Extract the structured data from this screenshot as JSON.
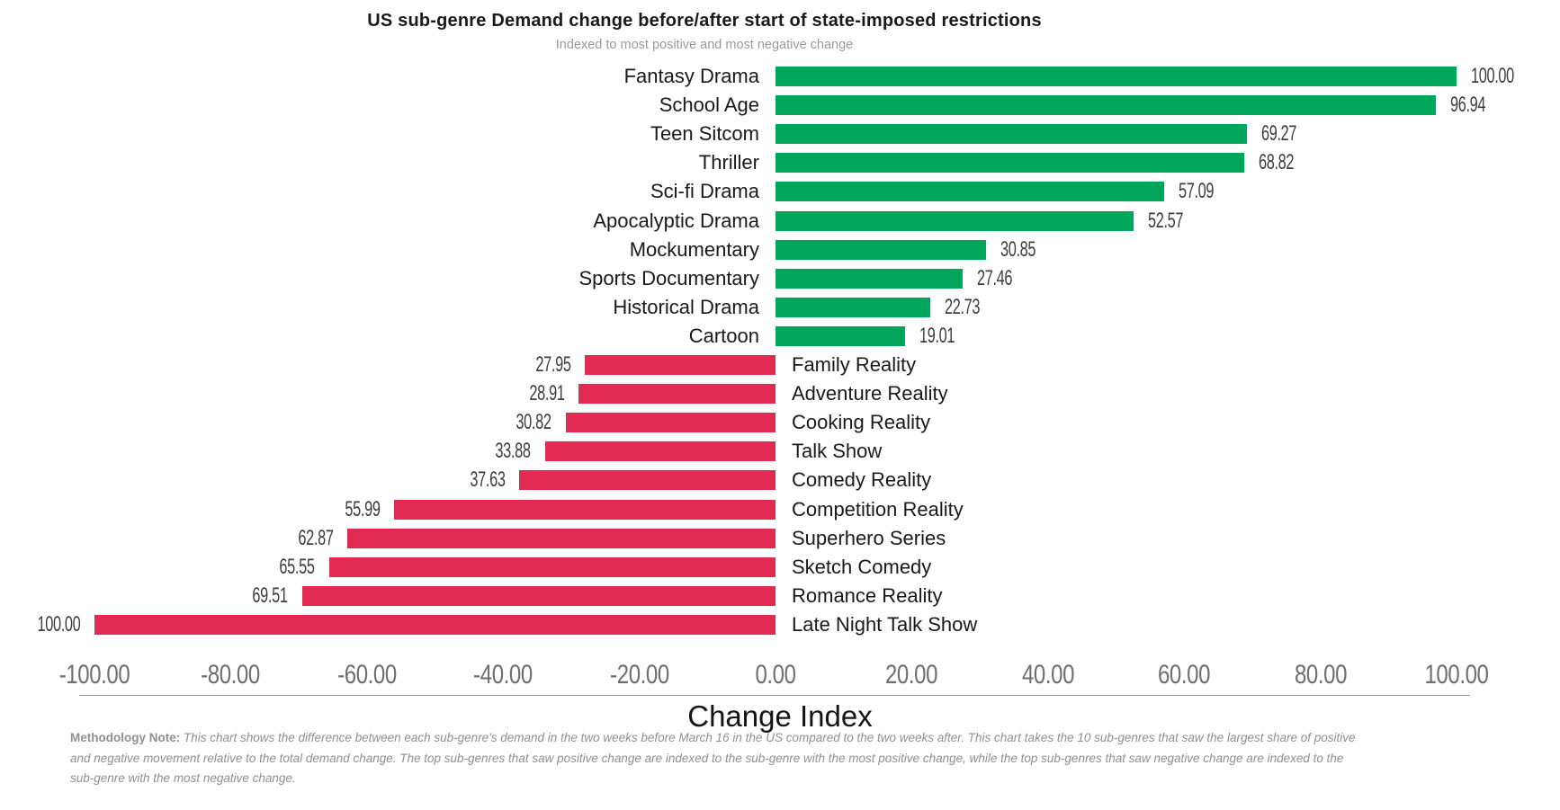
{
  "chart_data": {
    "type": "bar",
    "orientation": "horizontal",
    "title": "US sub-genre Demand change before/after start of state-imposed restrictions",
    "subtitle": "Indexed to most positive and most negative change",
    "xlabel": "Change Index",
    "xlim": [
      -100,
      100
    ],
    "grid": false,
    "legend": false,
    "xtick_values": [
      -100,
      -80,
      -60,
      -40,
      -20,
      0,
      20,
      40,
      60,
      80,
      100
    ],
    "xtick_labels": [
      "-100.00",
      "-80.00",
      "-60.00",
      "-40.00",
      "-20.00",
      "0.00",
      "20.00",
      "40.00",
      "60.00",
      "80.00",
      "100.00"
    ],
    "positive_color": "#00a75a",
    "negative_color": "#e32a52",
    "items": [
      {
        "label": "Fantasy Drama",
        "value": 100.0,
        "display": "100.00"
      },
      {
        "label": "School Age",
        "value": 96.94,
        "display": "96.94"
      },
      {
        "label": "Teen Sitcom",
        "value": 69.27,
        "display": "69.27"
      },
      {
        "label": "Thriller",
        "value": 68.82,
        "display": "68.82"
      },
      {
        "label": "Sci-fi Drama",
        "value": 57.09,
        "display": "57.09"
      },
      {
        "label": "Apocalyptic Drama",
        "value": 52.57,
        "display": "52.57"
      },
      {
        "label": "Mockumentary",
        "value": 30.85,
        "display": "30.85"
      },
      {
        "label": "Sports Documentary",
        "value": 27.46,
        "display": "27.46"
      },
      {
        "label": "Historical Drama",
        "value": 22.73,
        "display": "22.73"
      },
      {
        "label": "Cartoon",
        "value": 19.01,
        "display": "19.01"
      },
      {
        "label": "Family Reality",
        "value": -27.95,
        "display": "27.95"
      },
      {
        "label": "Adventure Reality",
        "value": -28.91,
        "display": "28.91"
      },
      {
        "label": "Cooking Reality",
        "value": -30.82,
        "display": "30.82"
      },
      {
        "label": "Talk Show",
        "value": -33.88,
        "display": "33.88"
      },
      {
        "label": "Comedy Reality",
        "value": -37.63,
        "display": "37.63"
      },
      {
        "label": "Competition Reality",
        "value": -55.99,
        "display": "55.99"
      },
      {
        "label": "Superhero Series",
        "value": -62.87,
        "display": "62.87"
      },
      {
        "label": "Sketch Comedy",
        "value": -65.55,
        "display": "65.55"
      },
      {
        "label": "Romance Reality",
        "value": -69.51,
        "display": "69.51"
      },
      {
        "label": "Late Night Talk Show",
        "value": -100.0,
        "display": "100.00"
      }
    ]
  },
  "footer": {
    "note_label": "Methodology Note:",
    "note_body": "This chart shows the difference between each sub-genre's demand in the two weeks before March 16 in the US compared to the two weeks after. This chart takes the 10 sub-genres that saw the largest share of positive and negative movement relative to the total demand change. The top sub-genres that saw positive change are indexed to the sub-genre with the most positive change, while the top sub-genres that saw negative change are indexed to the sub-genre with the most negative change."
  }
}
